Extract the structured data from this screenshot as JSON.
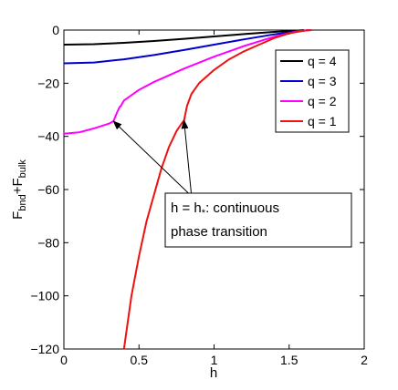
{
  "chart_data": {
    "type": "line",
    "xlabel": "h",
    "ylabel": "F",
    "ylabel_sub1": "bnd",
    "ylabel_plus": "+F",
    "ylabel_sub2": "bulk",
    "xlim": [
      0,
      2
    ],
    "ylim": [
      -120,
      0
    ],
    "x_ticks": [
      0,
      0.5,
      1,
      1.5,
      2
    ],
    "x_tick_labels": [
      "0",
      "0.5",
      "1",
      "1.5",
      "2"
    ],
    "y_ticks": [
      0,
      -20,
      -40,
      -60,
      -80,
      -100,
      -120
    ],
    "y_tick_labels": [
      "0",
      "−20",
      "−40",
      "−60",
      "−80",
      "−100",
      "−120"
    ],
    "grid": false,
    "legend_placement": "top-right",
    "series": [
      {
        "name": "q = 4",
        "color": "#000000",
        "points": [
          [
            0,
            -5.5
          ],
          [
            0.2,
            -5.3
          ],
          [
            0.4,
            -4.8
          ],
          [
            0.6,
            -4.1
          ],
          [
            0.8,
            -3.3
          ],
          [
            1.0,
            -2.4
          ],
          [
            1.2,
            -1.5
          ],
          [
            1.4,
            -0.7
          ],
          [
            1.55,
            -0.2
          ],
          [
            1.6,
            0
          ]
        ]
      },
      {
        "name": "q = 3",
        "color": "#0000cc",
        "points": [
          [
            0,
            -12.5
          ],
          [
            0.2,
            -12.2
          ],
          [
            0.4,
            -11
          ],
          [
            0.6,
            -9.4
          ],
          [
            0.8,
            -7.5
          ],
          [
            1.0,
            -5.5
          ],
          [
            1.2,
            -3.5
          ],
          [
            1.4,
            -1.6
          ],
          [
            1.55,
            -0.5
          ],
          [
            1.63,
            0
          ]
        ]
      },
      {
        "name": "q = 2",
        "color": "#ff00ff",
        "points": [
          [
            0,
            -39
          ],
          [
            0.1,
            -38.5
          ],
          [
            0.2,
            -37
          ],
          [
            0.3,
            -35.2
          ],
          [
            0.33,
            -34.3
          ],
          [
            0.35,
            -31.5
          ],
          [
            0.37,
            -29
          ],
          [
            0.38,
            -28.5
          ],
          [
            0.4,
            -26.5
          ],
          [
            0.5,
            -22.5
          ],
          [
            0.6,
            -19.5
          ],
          [
            0.8,
            -14.5
          ],
          [
            1.0,
            -10
          ],
          [
            1.2,
            -6
          ],
          [
            1.4,
            -2.5
          ],
          [
            1.55,
            -0.5
          ],
          [
            1.64,
            0
          ]
        ]
      },
      {
        "name": "q = 1",
        "color": "#ee1111",
        "points": [
          [
            0.4,
            -120
          ],
          [
            0.45,
            -100
          ],
          [
            0.5,
            -85
          ],
          [
            0.55,
            -72
          ],
          [
            0.6,
            -62
          ],
          [
            0.65,
            -52
          ],
          [
            0.7,
            -44
          ],
          [
            0.75,
            -38
          ],
          [
            0.78,
            -35.5
          ],
          [
            0.8,
            -34
          ],
          [
            0.82,
            -28.5
          ],
          [
            0.85,
            -24
          ],
          [
            0.9,
            -20
          ],
          [
            1.0,
            -15
          ],
          [
            1.1,
            -11
          ],
          [
            1.2,
            -8
          ],
          [
            1.3,
            -5.5
          ],
          [
            1.4,
            -3
          ],
          [
            1.5,
            -1.2
          ],
          [
            1.6,
            -0.2
          ],
          [
            1.65,
            0
          ]
        ]
      }
    ],
    "annotation": {
      "line1": "h = h",
      "line1_sub": "*",
      "line1_rest": ": continuous",
      "line2": "phase transition",
      "arrow_targets": [
        [
          0.33,
          -34.3
        ],
        [
          0.8,
          -34
        ]
      ],
      "arrow_source": [
        0.85,
        -62.5
      ]
    }
  }
}
